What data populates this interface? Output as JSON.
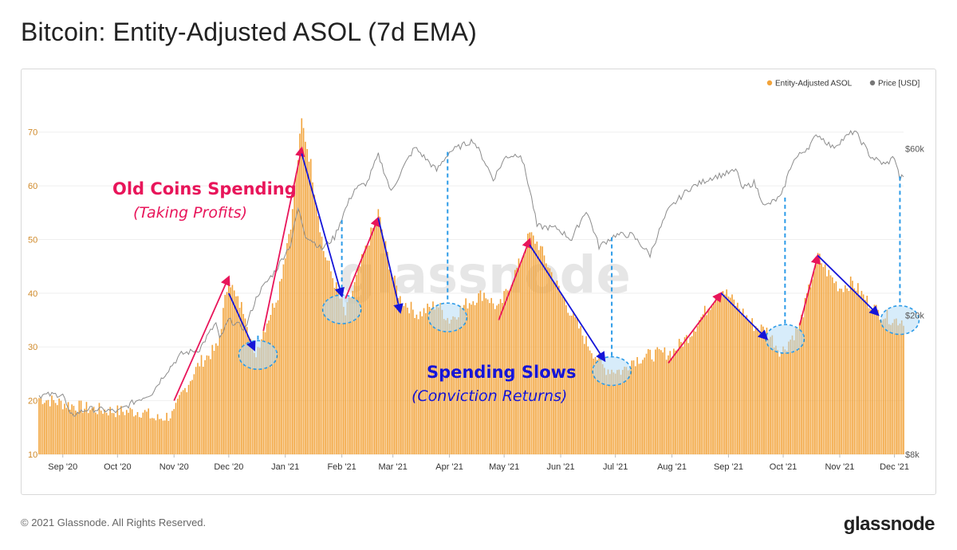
{
  "header": {
    "title": "Bitcoin: Entity-Adjusted ASOL (7d EMA)"
  },
  "footer": {
    "copyright": "© 2021 Glassnode. All Rights Reserved.",
    "brand": "glassnode"
  },
  "watermark": "glassnode",
  "colors": {
    "bars": "#f2a33a",
    "price": "#8c8c8c",
    "red": "#e8155a",
    "blue": "#1515d8",
    "dash": "#2c9be8",
    "circle_fill": "#b7dcf5"
  },
  "chart_data": {
    "type": "bar",
    "title": "Bitcoin: Entity-Adjusted ASOL (7d EMA)",
    "x_tick_labels": [
      "Sep '20",
      "Oct '20",
      "Nov '20",
      "Dec '20",
      "Jan '21",
      "Feb '21",
      "Mar '21",
      "Apr '21",
      "May '21",
      "Jun '21",
      "Jul '21",
      "Aug '21",
      "Sep '21",
      "Oct '21",
      "Nov '21",
      "Dec '21"
    ],
    "y_left_ticks": [
      10,
      20,
      30,
      40,
      50,
      60,
      70
    ],
    "y_left_range": [
      10,
      75
    ],
    "y_right_tick_labels": [
      "$8k",
      "$20k",
      "$60k"
    ],
    "y_right_scale": "log",
    "y_right_range": [
      8000,
      80000
    ],
    "grid": "horizontal",
    "legend_position": "top-right",
    "series": [
      {
        "name": "Entity-Adjusted ASOL",
        "type": "bar",
        "axis": "left",
        "points": [
          [
            "2020-08-19",
            20.5
          ],
          [
            "2020-09-01",
            19.5
          ],
          [
            "2020-09-15",
            18.5
          ],
          [
            "2020-10-01",
            18
          ],
          [
            "2020-10-15",
            18
          ],
          [
            "2020-10-22",
            16.5
          ],
          [
            "2020-11-01",
            17.5
          ],
          [
            "2020-11-05",
            21
          ],
          [
            "2020-11-15",
            27
          ],
          [
            "2020-11-25",
            30
          ],
          [
            "2020-12-01",
            43
          ],
          [
            "2020-12-05",
            39
          ],
          [
            "2020-12-10",
            36.5
          ],
          [
            "2020-12-15",
            28
          ],
          [
            "2020-12-20",
            33
          ],
          [
            "2020-12-28",
            40
          ],
          [
            "2021-01-05",
            55
          ],
          [
            "2021-01-10",
            72
          ],
          [
            "2021-01-15",
            64
          ],
          [
            "2021-01-22",
            48
          ],
          [
            "2021-01-28",
            42
          ],
          [
            "2021-02-03",
            36
          ],
          [
            "2021-02-12",
            46
          ],
          [
            "2021-02-21",
            55
          ],
          [
            "2021-02-28",
            44
          ],
          [
            "2021-03-05",
            39
          ],
          [
            "2021-03-15",
            36
          ],
          [
            "2021-03-25",
            38
          ],
          [
            "2021-04-01",
            35
          ],
          [
            "2021-04-10",
            38
          ],
          [
            "2021-04-20",
            40
          ],
          [
            "2021-04-28",
            37
          ],
          [
            "2021-05-10",
            46
          ],
          [
            "2021-05-15",
            51
          ],
          [
            "2021-05-20",
            49
          ],
          [
            "2021-06-01",
            40
          ],
          [
            "2021-06-15",
            31
          ],
          [
            "2021-06-25",
            26
          ],
          [
            "2021-07-05",
            25.5
          ],
          [
            "2021-07-10",
            27.5
          ],
          [
            "2021-07-20",
            28.5
          ],
          [
            "2021-08-01",
            29
          ],
          [
            "2021-08-10",
            32
          ],
          [
            "2021-08-20",
            37
          ],
          [
            "2021-08-28",
            41
          ],
          [
            "2021-09-05",
            38
          ],
          [
            "2021-09-15",
            34
          ],
          [
            "2021-09-22",
            33
          ],
          [
            "2021-09-30",
            29
          ],
          [
            "2021-10-10",
            34
          ],
          [
            "2021-10-20",
            47
          ],
          [
            "2021-10-25",
            44
          ],
          [
            "2021-11-01",
            41
          ],
          [
            "2021-11-08",
            42
          ],
          [
            "2021-11-15",
            39
          ],
          [
            "2021-11-22",
            36.5
          ],
          [
            "2021-12-01",
            35
          ],
          [
            "2021-12-06",
            35
          ]
        ]
      },
      {
        "name": "Price [USD]",
        "type": "line",
        "axis": "right",
        "points": [
          [
            "2020-08-19",
            11800
          ],
          [
            "2020-09-01",
            11900
          ],
          [
            "2020-09-05",
            10300
          ],
          [
            "2020-09-15",
            10800
          ],
          [
            "2020-09-25",
            10700
          ],
          [
            "2020-10-01",
            10600
          ],
          [
            "2020-10-10",
            11300
          ],
          [
            "2020-10-20",
            12000
          ],
          [
            "2020-10-27",
            13600
          ],
          [
            "2020-11-05",
            15500
          ],
          [
            "2020-11-15",
            16000
          ],
          [
            "2020-11-24",
            19000
          ],
          [
            "2020-11-26",
            17000
          ],
          [
            "2020-12-01",
            19400
          ],
          [
            "2020-12-10",
            18300
          ],
          [
            "2020-12-17",
            23000
          ],
          [
            "2020-12-27",
            27000
          ],
          [
            "2021-01-04",
            32000
          ],
          [
            "2021-01-08",
            40500
          ],
          [
            "2021-01-12",
            34000
          ],
          [
            "2021-01-21",
            31000
          ],
          [
            "2021-01-28",
            33500
          ],
          [
            "2021-02-08",
            46000
          ],
          [
            "2021-02-15",
            48000
          ],
          [
            "2021-02-21",
            57500
          ],
          [
            "2021-02-28",
            45000
          ],
          [
            "2021-03-13",
            60500
          ],
          [
            "2021-03-25",
            52000
          ],
          [
            "2021-04-01",
            58800
          ],
          [
            "2021-04-14",
            63500
          ],
          [
            "2021-04-25",
            49000
          ],
          [
            "2021-05-02",
            57000
          ],
          [
            "2021-05-10",
            58000
          ],
          [
            "2021-05-19",
            36000
          ],
          [
            "2021-05-30",
            35500
          ],
          [
            "2021-06-07",
            33000
          ],
          [
            "2021-06-15",
            40000
          ],
          [
            "2021-06-22",
            31500
          ],
          [
            "2021-07-01",
            34000
          ],
          [
            "2021-07-10",
            34000
          ],
          [
            "2021-07-20",
            29800
          ],
          [
            "2021-07-30",
            40000
          ],
          [
            "2021-08-10",
            46000
          ],
          [
            "2021-08-22",
            49500
          ],
          [
            "2021-09-06",
            52000
          ],
          [
            "2021-09-08",
            46000
          ],
          [
            "2021-09-15",
            48000
          ],
          [
            "2021-09-21",
            41000
          ],
          [
            "2021-09-30",
            43800
          ],
          [
            "2021-10-06",
            55000
          ],
          [
            "2021-10-15",
            61000
          ],
          [
            "2021-10-20",
            66000
          ],
          [
            "2021-10-28",
            60500
          ],
          [
            "2021-11-09",
            67500
          ],
          [
            "2021-11-18",
            57000
          ],
          [
            "2021-11-26",
            54000
          ],
          [
            "2021-12-01",
            57000
          ],
          [
            "2021-12-04",
            49000
          ],
          [
            "2021-12-06",
            50500
          ]
        ]
      }
    ],
    "annotations": [
      {
        "text": "Old Coins Spending",
        "style": "red-bold"
      },
      {
        "text": "(Taking Profits)",
        "style": "red-italic"
      },
      {
        "text": "Spending Slows",
        "style": "blue-bold"
      },
      {
        "text": "(Conviction Returns)",
        "style": "blue-italic"
      }
    ],
    "red_arrows": [
      [
        [
          "2020-11-01",
          20
        ],
        [
          "2020-12-01",
          43
        ]
      ],
      [
        [
          "2020-12-20",
          33
        ],
        [
          "2021-01-10",
          67
        ]
      ],
      [
        [
          "2021-02-03",
          39
        ],
        [
          "2021-02-21",
          54
        ]
      ],
      [
        [
          "2021-04-28",
          35
        ],
        [
          "2021-05-15",
          50
        ]
      ],
      [
        [
          "2021-07-30",
          27
        ],
        [
          "2021-08-28",
          40
        ]
      ],
      [
        [
          "2021-10-10",
          34
        ],
        [
          "2021-10-20",
          47
        ]
      ]
    ],
    "blue_arrows": [
      [
        [
          "2020-12-01",
          40
        ],
        [
          "2020-12-15",
          29.5
        ]
      ],
      [
        [
          "2021-01-10",
          66
        ],
        [
          "2021-02-01",
          39.5
        ]
      ],
      [
        [
          "2021-02-21",
          54
        ],
        [
          "2021-03-05",
          36.5
        ]
      ],
      [
        [
          "2021-05-15",
          49
        ],
        [
          "2021-06-25",
          27.5
        ]
      ],
      [
        [
          "2021-08-28",
          40
        ],
        [
          "2021-09-22",
          31.5
        ]
      ],
      [
        [
          "2021-10-20",
          47
        ],
        [
          "2021-11-22",
          36
        ]
      ]
    ],
    "highlights": [
      {
        "center": [
          "2020-12-17",
          28.5
        ],
        "price_top": 17500
      },
      {
        "center": [
          "2021-02-01",
          37
        ],
        "price_top": 37500
      },
      {
        "center": [
          "2021-03-31",
          35.5
        ],
        "price_top": 58800
      },
      {
        "center": [
          "2021-06-29",
          25.5
        ],
        "price_top": 33500
      },
      {
        "center": [
          "2021-10-02",
          31.5
        ],
        "price_top": 43500
      },
      {
        "center": [
          "2021-12-04",
          35
        ],
        "price_top": 50000
      }
    ]
  }
}
